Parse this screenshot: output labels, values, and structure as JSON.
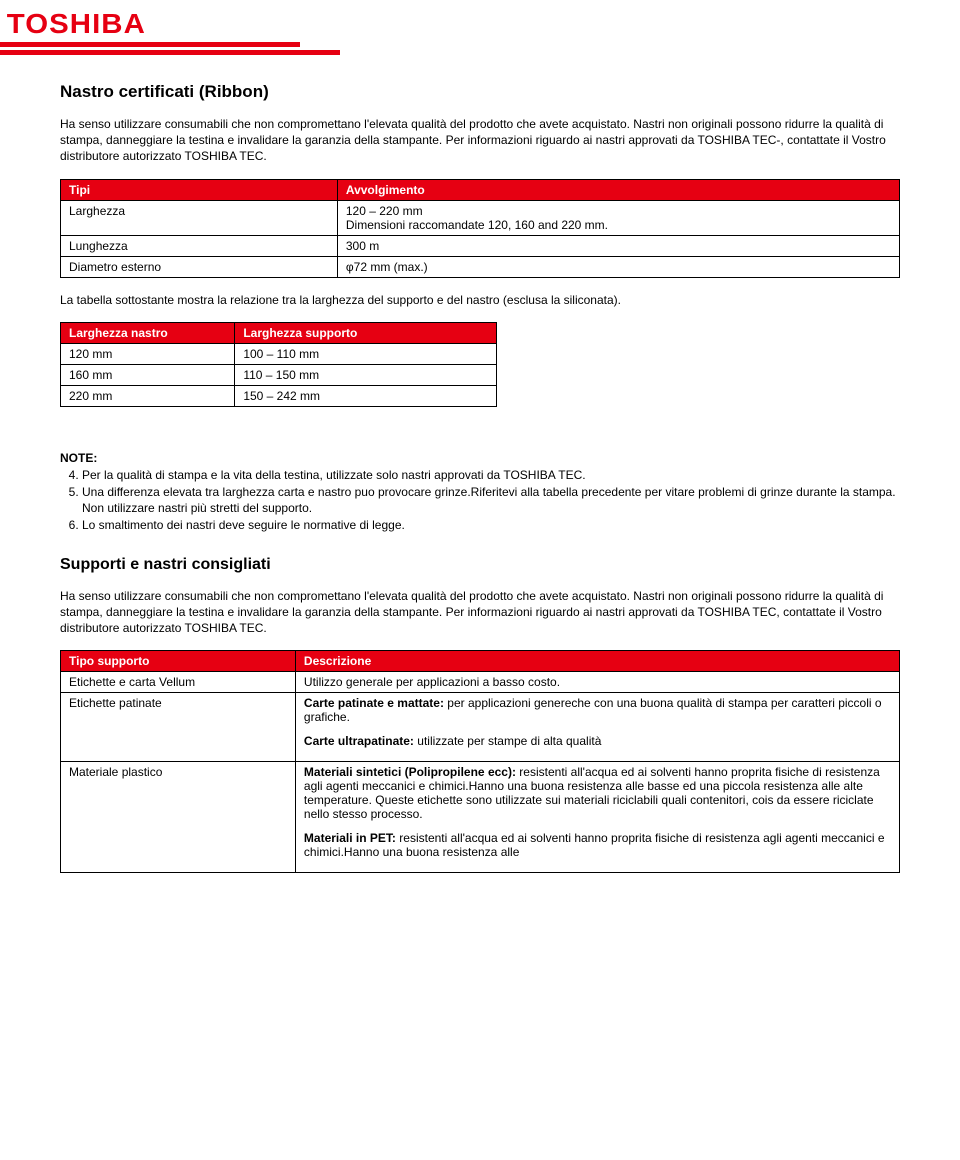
{
  "brand": {
    "name": "TOSHIBA",
    "accent_color": "#e60012"
  },
  "ribbon": {
    "title": "Nastro certificati (Ribbon)",
    "intro": "Ha senso utilizzare consumabili che non compromettano l'elevata qualità del prodotto che avete acquistato. Nastri non originali possono ridurre la qualità di stampa, danneggiare la testina e invalidare la garanzia della stampante. Per informazioni riguardo ai nastri approvati da TOSHIBA TEC-, contattate il Vostro distributore autorizzato TOSHIBA TEC.",
    "table1": {
      "headers": [
        "Tipi",
        "Avvolgimento"
      ],
      "rows": [
        [
          "Larghezza",
          "120 – 220 mm\nDimensioni raccomandate 120, 160 and 220 mm."
        ],
        [
          "Lunghezza",
          "300 m"
        ],
        [
          "Diametro esterno",
          "φ72 mm (max.)"
        ]
      ],
      "col_widths": [
        "33%",
        "67%"
      ]
    },
    "mid_text": "La tabella sottostante mostra la relazione tra la larghezza del supporto e del nastro (esclusa la siliconata).",
    "table2": {
      "headers": [
        "Larghezza nastro",
        "Larghezza supporto"
      ],
      "rows": [
        [
          "120 mm",
          "100 – 110 mm"
        ],
        [
          "160 mm",
          "110 – 150 mm"
        ],
        [
          "220 mm",
          "150 – 242 mm"
        ]
      ],
      "col_widths": [
        "40%",
        "60%"
      ]
    },
    "notes_label": "NOTE:",
    "notes_start": 4,
    "notes": [
      "Per la qualità di stampa e la vita della testina, utilizzate solo nastri approvati da TOSHIBA TEC.",
      "Una differenza elevata tra larghezza carta e nastro puo provocare grinze.Riferitevi alla tabella precedente per vitare problemi di grinze durante la stampa. Non utilizzare nastri più stretti del supporto.",
      "Lo smaltimento dei nastri deve seguire le normative di legge."
    ]
  },
  "supports": {
    "title": "Supporti e nastri consigliati",
    "intro": "Ha senso utilizzare consumabili che non compromettano l'elevata qualità del prodotto che avete acquistato. Nastri non originali possono ridurre la qualità di stampa, danneggiare la testina e invalidare la garanzia della stampante. Per informazioni riguardo ai nastri approvati da TOSHIBA TEC, contattate il Vostro distributore autorizzato TOSHIBA TEC.",
    "table": {
      "headers": [
        "Tipo supporto",
        "Descrizione"
      ],
      "col_widths": [
        "28%",
        "72%"
      ],
      "rows": [
        {
          "label": "Etichette e carta Vellum",
          "desc_plain": "Utilizzo generale per applicazioni a basso costo."
        },
        {
          "label": "Etichette patinate",
          "blocks": [
            {
              "bold": "Carte patinate e mattate:",
              "rest": " per applicazioni genereche con una buona qualità di stampa per caratteri piccoli o grafiche."
            },
            {
              "bold": "Carte ultrapatinate:",
              "rest": " utilizzate per stampe di alta qualità"
            }
          ]
        },
        {
          "label": "Materiale plastico",
          "blocks": [
            {
              "bold": "Materiali sintetici (Polipropilene ecc):",
              "rest": " resistenti all'acqua ed ai solventi hanno proprita fisiche di resistenza agli agenti meccanici e chimici.Hanno una buona resistenza alle basse ed una piccola resistenza alle alte temperature. Queste etichette sono utilizzate sui materiali riciclabili quali contenitori, cois da essere riciclate nello stesso processo."
            },
            {
              "bold": "Materiali in PET:",
              "rest": " resistenti all'acqua ed ai solventi hanno proprita fisiche di resistenza agli agenti meccanici e chimici.Hanno una buona resistenza alle"
            }
          ]
        }
      ]
    }
  }
}
